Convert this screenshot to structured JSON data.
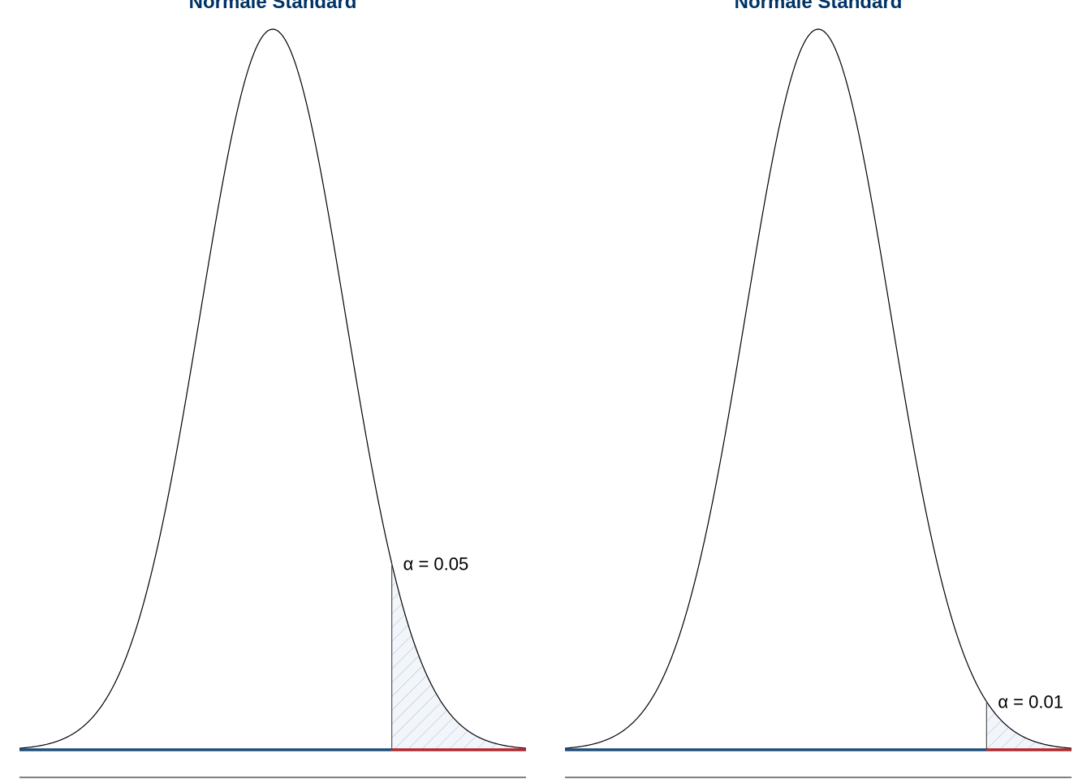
{
  "chart_data": [
    {
      "type": "area",
      "title": "Normale Standard",
      "distribution": "standard normal",
      "xlim": [
        -3.5,
        3.5
      ],
      "critical_value": 1.645,
      "alpha_label": "α = 0.05",
      "alpha": 0.05,
      "tail": "right",
      "grid": false
    },
    {
      "type": "area",
      "title": "Normale Standard",
      "distribution": "standard normal",
      "xlim": [
        -3.5,
        3.5
      ],
      "critical_value": 2.326,
      "alpha_label": "α = 0.01",
      "alpha": 0.01,
      "tail": "right",
      "grid": false
    }
  ],
  "colors": {
    "acceptance_region": "#1f4e79",
    "rejection_region": "#b2262d",
    "hatch": "#9fb3c8",
    "curve": "#000000",
    "title": "#003366"
  }
}
